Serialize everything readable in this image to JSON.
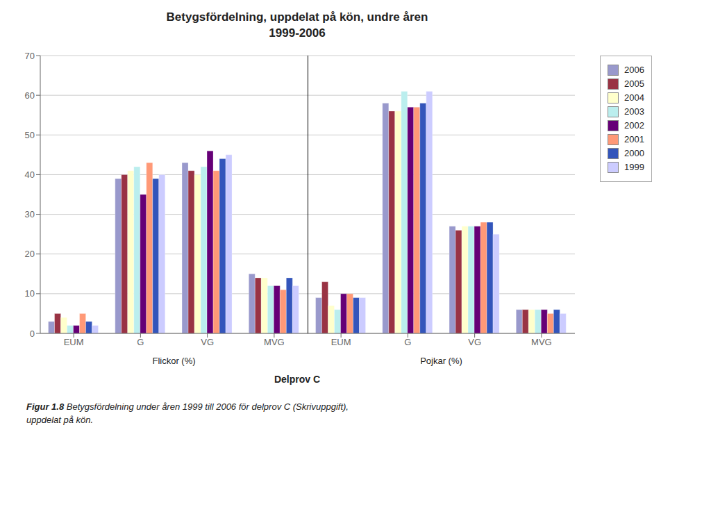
{
  "chart_data": {
    "type": "bar",
    "title": "Betygsfördelning, uppdelat på kön, undre åren\n1999-2006",
    "xlabel": "Delprov C",
    "section_labels": [
      "Flickor (%)",
      "Pojkar (%)"
    ],
    "caption": "Figur 1.8 Betygsfördelning under åren 1999 till 2006 för delprov C (Skrivuppgift),\nuppdelat på kön.",
    "categories": [
      "EUM",
      "G",
      "VG",
      "MVG",
      "EUM",
      "G",
      "VG",
      "MVG"
    ],
    "series": [
      {
        "name": "2006",
        "color": "#9999cc",
        "values": [
          3,
          39,
          43,
          15,
          9,
          58,
          27,
          6
        ]
      },
      {
        "name": "2005",
        "color": "#993344",
        "values": [
          5,
          40,
          41,
          14,
          13,
          56,
          26,
          6
        ]
      },
      {
        "name": "2004",
        "color": "#ffffcc",
        "values": [
          4,
          41,
          40,
          14,
          7,
          56,
          27,
          6
        ]
      },
      {
        "name": "2003",
        "color": "#bbeeee",
        "values": [
          2,
          42,
          42,
          12,
          6,
          61,
          27,
          6
        ]
      },
      {
        "name": "2002",
        "color": "#660077",
        "values": [
          2,
          35,
          46,
          12,
          10,
          57,
          27,
          6
        ]
      },
      {
        "name": "2001",
        "color": "#ff9977",
        "values": [
          5,
          43,
          41,
          11,
          10,
          57,
          28,
          5
        ]
      },
      {
        "name": "2000",
        "color": "#3355bb",
        "values": [
          3,
          39,
          44,
          14,
          9,
          58,
          28,
          6
        ]
      },
      {
        "name": "1999",
        "color": "#ccccff",
        "values": [
          2,
          40,
          45,
          12,
          9,
          61,
          25,
          5
        ]
      }
    ],
    "ylim": [
      0,
      70
    ],
    "yticks": [
      0,
      10,
      20,
      30,
      40,
      50,
      60,
      70
    ],
    "grid": true,
    "legend": "right"
  }
}
